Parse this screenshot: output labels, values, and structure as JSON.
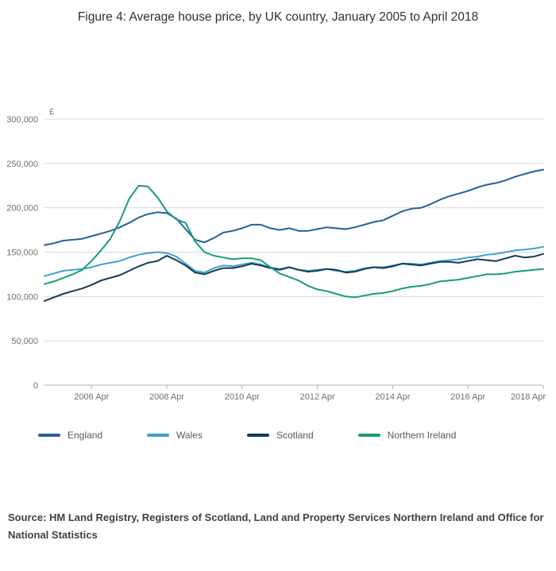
{
  "title": "Figure 4: Average house price, by UK country, January 2005 to April 2018",
  "source": "Source: HM Land Registry, Registers of Scotland, Land and Property Services Northern Ireland and Office for National Statistics",
  "chart_data": {
    "type": "line",
    "title": "Figure 4: Average house price, by UK country, January 2005 to April 2018",
    "xlabel": "",
    "ylabel": "£",
    "ylim": [
      0,
      300000
    ],
    "grid": true,
    "legend_position": "bottom",
    "colors": {
      "grid": "#d7d7d7",
      "axis": "#b3b3b3",
      "tick_text": "#707071"
    },
    "x": [
      "2005 Jan",
      "2005 Apr",
      "2005 Jul",
      "2005 Oct",
      "2006 Jan",
      "2006 Apr",
      "2006 Jul",
      "2006 Oct",
      "2007 Jan",
      "2007 Apr",
      "2007 Jul",
      "2007 Oct",
      "2008 Jan",
      "2008 Apr",
      "2008 Jul",
      "2008 Oct",
      "2009 Jan",
      "2009 Apr",
      "2009 Jul",
      "2009 Oct",
      "2010 Jan",
      "2010 Apr",
      "2010 Jul",
      "2010 Oct",
      "2011 Jan",
      "2011 Apr",
      "2011 Jul",
      "2011 Oct",
      "2012 Jan",
      "2012 Apr",
      "2012 Jul",
      "2012 Oct",
      "2013 Jan",
      "2013 Apr",
      "2013 Jul",
      "2013 Oct",
      "2014 Jan",
      "2014 Apr",
      "2014 Jul",
      "2014 Oct",
      "2015 Jan",
      "2015 Apr",
      "2015 Jul",
      "2015 Oct",
      "2016 Jan",
      "2016 Apr",
      "2016 Jul",
      "2016 Oct",
      "2017 Jan",
      "2017 Apr",
      "2017 Jul",
      "2017 Oct",
      "2018 Jan",
      "2018 Apr"
    ],
    "x_ticks": [
      {
        "index": 5,
        "label": "2006 Apr"
      },
      {
        "index": 13,
        "label": "2008 Apr"
      },
      {
        "index": 21,
        "label": "2010 Apr"
      },
      {
        "index": 29,
        "label": "2012 Apr"
      },
      {
        "index": 37,
        "label": "2014 Apr"
      },
      {
        "index": 45,
        "label": "2016 Apr"
      },
      {
        "index": 53,
        "label": "2018 Apr"
      }
    ],
    "y_ticks": [
      {
        "value": 0,
        "label": "0"
      },
      {
        "value": 50000,
        "label": "50,000"
      },
      {
        "value": 100000,
        "label": "100,000"
      },
      {
        "value": 150000,
        "label": "150,000"
      },
      {
        "value": 200000,
        "label": "200,000"
      },
      {
        "value": 250000,
        "label": "250,000"
      },
      {
        "value": 300000,
        "label": "300,000"
      }
    ],
    "series": [
      {
        "name": "England",
        "color": "#27609b",
        "values": [
          158000,
          160000,
          163000,
          164000,
          165000,
          168000,
          171000,
          174000,
          178000,
          183000,
          189000,
          193000,
          195000,
          194000,
          188000,
          176000,
          164000,
          161000,
          166000,
          172000,
          174000,
          177000,
          181000,
          181000,
          177000,
          175000,
          177000,
          174000,
          174000,
          176000,
          178000,
          177000,
          176000,
          178000,
          181000,
          184000,
          186000,
          191000,
          196000,
          199000,
          200000,
          204000,
          209000,
          213000,
          216000,
          219000,
          223000,
          226000,
          228000,
          231000,
          235000,
          238000,
          241000,
          243000
        ]
      },
      {
        "name": "Wales",
        "color": "#41a0cd",
        "values": [
          123000,
          126000,
          129000,
          130000,
          131000,
          133000,
          136000,
          138000,
          140000,
          144000,
          147000,
          149000,
          150000,
          149000,
          145000,
          137000,
          129000,
          127000,
          132000,
          135000,
          134000,
          136000,
          138000,
          136000,
          133000,
          131000,
          133000,
          130000,
          129000,
          130000,
          131000,
          129000,
          128000,
          129000,
          132000,
          133000,
          133000,
          135000,
          137000,
          137000,
          136000,
          138000,
          140000,
          141000,
          142000,
          144000,
          145000,
          147000,
          148000,
          150000,
          152000,
          153000,
          154000,
          156000
        ]
      },
      {
        "name": "Scotland",
        "color": "#0f3d57",
        "values": [
          95000,
          99000,
          103000,
          106000,
          109000,
          113000,
          118000,
          121000,
          124000,
          129000,
          134000,
          138000,
          140000,
          146000,
          141000,
          135000,
          127000,
          125000,
          129000,
          132000,
          132000,
          134000,
          137000,
          135000,
          132000,
          130000,
          133000,
          130000,
          128000,
          129000,
          131000,
          130000,
          127000,
          128000,
          131000,
          133000,
          132000,
          134000,
          137000,
          136000,
          135000,
          137000,
          139000,
          139000,
          138000,
          140000,
          142000,
          141000,
          140000,
          143000,
          146000,
          144000,
          145000,
          148000
        ]
      },
      {
        "name": "Northern Ireland",
        "color": "#199d76",
        "values": [
          114000,
          117000,
          121000,
          125000,
          130000,
          140000,
          152000,
          165000,
          185000,
          210000,
          225000,
          224000,
          212000,
          196000,
          187000,
          183000,
          162000,
          150000,
          146000,
          144000,
          142000,
          143000,
          143000,
          141000,
          133000,
          126000,
          122000,
          118000,
          112000,
          108000,
          106000,
          103000,
          100000,
          99000,
          101000,
          103000,
          104000,
          106000,
          109000,
          111000,
          112000,
          114000,
          117000,
          118000,
          119000,
          121000,
          123000,
          125000,
          125000,
          126000,
          128000,
          129000,
          130000,
          131000
        ]
      }
    ]
  }
}
